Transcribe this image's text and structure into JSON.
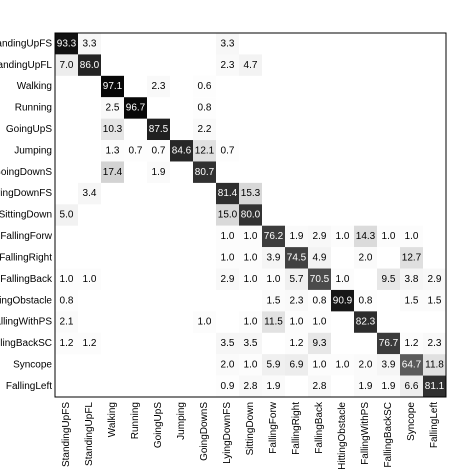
{
  "chart_data": {
    "type": "heatmap",
    "categories": [
      "StandingUpFS",
      "StandingUpFL",
      "Walking",
      "Running",
      "GoingUpS",
      "Jumping",
      "GoingDownS",
      "LyingDownFS",
      "SittingDown",
      "FallingForw",
      "FallingRight",
      "FallingBack",
      "HittingObstacle",
      "FallingWithPS",
      "FallingBackSC",
      "Syncope",
      "FallingLeft"
    ],
    "values": [
      [
        93.3,
        3.3,
        null,
        null,
        null,
        null,
        null,
        3.3,
        null,
        null,
        null,
        null,
        null,
        null,
        null,
        null,
        null
      ],
      [
        7.0,
        86.0,
        null,
        null,
        null,
        null,
        null,
        2.3,
        4.7,
        null,
        null,
        null,
        null,
        null,
        null,
        null,
        null
      ],
      [
        null,
        null,
        97.1,
        null,
        2.3,
        null,
        0.6,
        null,
        null,
        null,
        null,
        null,
        null,
        null,
        null,
        null,
        null
      ],
      [
        null,
        null,
        2.5,
        96.7,
        null,
        null,
        0.8,
        null,
        null,
        null,
        null,
        null,
        null,
        null,
        null,
        null,
        null
      ],
      [
        null,
        null,
        10.3,
        null,
        87.5,
        null,
        2.2,
        null,
        null,
        null,
        null,
        null,
        null,
        null,
        null,
        null,
        null
      ],
      [
        null,
        null,
        1.3,
        0.7,
        0.7,
        84.6,
        12.1,
        0.7,
        null,
        null,
        null,
        null,
        null,
        null,
        null,
        null,
        null
      ],
      [
        null,
        null,
        17.4,
        null,
        1.9,
        null,
        80.7,
        null,
        null,
        null,
        null,
        null,
        null,
        null,
        null,
        null,
        null
      ],
      [
        null,
        3.4,
        null,
        null,
        null,
        null,
        null,
        81.4,
        15.3,
        null,
        null,
        null,
        null,
        null,
        null,
        null,
        null
      ],
      [
        5.0,
        null,
        null,
        null,
        null,
        null,
        null,
        15.0,
        80.0,
        null,
        null,
        null,
        null,
        null,
        null,
        null,
        null
      ],
      [
        null,
        null,
        null,
        null,
        null,
        null,
        null,
        1.0,
        1.0,
        76.2,
        1.9,
        2.9,
        1.0,
        14.3,
        1.0,
        1.0,
        null
      ],
      [
        null,
        null,
        null,
        null,
        null,
        null,
        null,
        1.0,
        1.0,
        3.9,
        74.5,
        4.9,
        null,
        2.0,
        null,
        12.7,
        null
      ],
      [
        1.0,
        1.0,
        null,
        null,
        null,
        null,
        null,
        2.9,
        1.0,
        1.0,
        5.7,
        70.5,
        1.0,
        null,
        9.5,
        3.8,
        2.9
      ],
      [
        0.8,
        null,
        null,
        null,
        null,
        null,
        null,
        null,
        null,
        1.5,
        2.3,
        0.8,
        90.9,
        0.8,
        null,
        1.5,
        1.5
      ],
      [
        2.1,
        null,
        null,
        null,
        null,
        null,
        1.0,
        null,
        1.0,
        11.5,
        1.0,
        1.0,
        null,
        82.3,
        null,
        null,
        null
      ],
      [
        1.2,
        1.2,
        null,
        null,
        null,
        null,
        null,
        3.5,
        3.5,
        null,
        1.2,
        9.3,
        null,
        null,
        76.7,
        1.2,
        2.3
      ],
      [
        null,
        null,
        null,
        null,
        null,
        null,
        null,
        2.0,
        1.0,
        5.9,
        6.9,
        1.0,
        1.0,
        2.0,
        3.9,
        64.7,
        11.8
      ],
      [
        null,
        null,
        null,
        null,
        null,
        null,
        null,
        0.9,
        2.8,
        1.9,
        null,
        2.8,
        null,
        1.9,
        1.9,
        6.6,
        81.1
      ]
    ],
    "value_labels": [
      [
        "93.3",
        "3.3",
        null,
        null,
        null,
        null,
        null,
        "3.3",
        null,
        null,
        null,
        null,
        null,
        null,
        null,
        null,
        null
      ],
      [
        "7.0",
        "86.0",
        null,
        null,
        null,
        null,
        null,
        "2.3",
        "4.7",
        null,
        null,
        null,
        null,
        null,
        null,
        null,
        null
      ],
      [
        null,
        null,
        "97.1",
        null,
        "2.3",
        null,
        "0.6",
        null,
        null,
        null,
        null,
        null,
        null,
        null,
        null,
        null,
        null
      ],
      [
        null,
        null,
        "2.5",
        "96.7",
        null,
        null,
        "0.8",
        null,
        null,
        null,
        null,
        null,
        null,
        null,
        null,
        null,
        null
      ],
      [
        null,
        null,
        "10.3",
        null,
        "87.5",
        null,
        "2.2",
        null,
        null,
        null,
        null,
        null,
        null,
        null,
        null,
        null,
        null
      ],
      [
        null,
        null,
        "1.3",
        "0.7",
        "0.7",
        "84.6",
        "12.1",
        "0.7",
        null,
        null,
        null,
        null,
        null,
        null,
        null,
        null,
        null
      ],
      [
        null,
        null,
        "17.4",
        null,
        "1.9",
        null,
        "80.7",
        null,
        null,
        null,
        null,
        null,
        null,
        null,
        null,
        null,
        null
      ],
      [
        null,
        "3.4",
        null,
        null,
        null,
        null,
        null,
        "81.4",
        "15.3",
        null,
        null,
        null,
        null,
        null,
        null,
        null,
        null
      ],
      [
        "5.0",
        null,
        null,
        null,
        null,
        null,
        null,
        "15.0",
        "80.0",
        null,
        null,
        null,
        null,
        null,
        null,
        null,
        null
      ],
      [
        null,
        null,
        null,
        null,
        null,
        null,
        null,
        "1.0",
        "1.0",
        "76.2",
        "1.9",
        "2.9",
        "1.0",
        "14.3",
        "1.0",
        "1.0",
        null
      ],
      [
        null,
        null,
        null,
        null,
        null,
        null,
        null,
        "1.0",
        "1.0",
        "3.9",
        "74.5",
        "4.9",
        null,
        "2.0",
        null,
        "12.7",
        null
      ],
      [
        "1.0",
        "1.0",
        null,
        null,
        null,
        null,
        null,
        "2.9",
        "1.0",
        "1.0",
        "5.7",
        "70.5",
        "1.0",
        null,
        "9.5",
        "3.8",
        "2.9"
      ],
      [
        "0.8",
        null,
        null,
        null,
        null,
        null,
        null,
        null,
        null,
        "1.5",
        "2.3",
        "0.8",
        "90.9",
        "0.8",
        null,
        "1.5",
        "1.5"
      ],
      [
        "2.1",
        null,
        null,
        null,
        null,
        null,
        "1.0",
        null,
        "1.0",
        "11.5",
        "1.0",
        "1.0",
        null,
        "82.3",
        null,
        null,
        null
      ],
      [
        "1.2",
        "1.2",
        null,
        null,
        null,
        null,
        null,
        "3.5",
        "3.5",
        null,
        "1.2",
        "9.3",
        null,
        null,
        "76.7",
        "1.2",
        "2.3"
      ],
      [
        null,
        null,
        null,
        null,
        null,
        null,
        null,
        "2.0",
        "1.0",
        "5.9",
        "6.9",
        "1.0",
        "1.0",
        "2.0",
        "3.9",
        "64.7",
        "11.8"
      ],
      [
        null,
        null,
        null,
        null,
        null,
        null,
        null,
        "0.9",
        "2.8",
        "1.9",
        null,
        "2.8",
        null,
        "1.9",
        "1.9",
        "6.6",
        "81.1"
      ]
    ],
    "color": "#000000"
  }
}
